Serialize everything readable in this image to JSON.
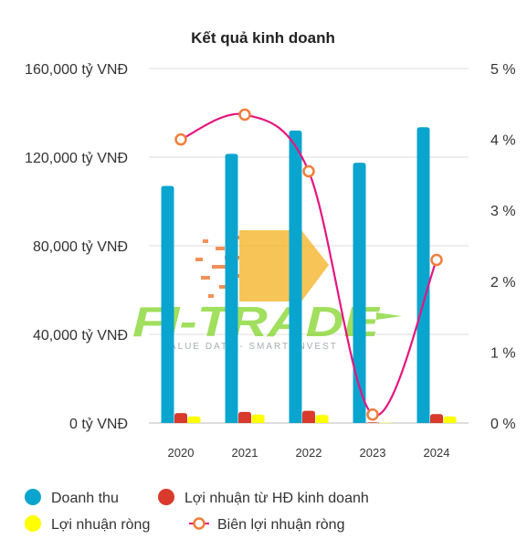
{
  "chart_data": {
    "type": "bar",
    "title": "Kết quả kinh doanh",
    "categories": [
      "2020",
      "2021",
      "2022",
      "2023",
      "2024"
    ],
    "series": [
      {
        "name": "Doanh thu",
        "kind": "bar",
        "axis": "left",
        "color": "#0aa5cf",
        "values": [
          107000,
          121500,
          132000,
          117500,
          133500
        ]
      },
      {
        "name": "Lợi nhuận từ HĐ kinh doanh",
        "kind": "bar",
        "axis": "left",
        "color": "#d93a2b",
        "values": [
          4500,
          5000,
          5500,
          300,
          4000
        ]
      },
      {
        "name": "Lợi nhuận ròng",
        "kind": "bar",
        "axis": "left",
        "color": "#ffff00",
        "values": [
          3000,
          3800,
          3600,
          200,
          3000
        ]
      },
      {
        "name": "Biên lợi nhuận ròng",
        "kind": "line",
        "axis": "right",
        "color": "#e6157f",
        "marker_color": "#f07d3a",
        "values": [
          4.0,
          4.35,
          3.55,
          0.12,
          2.3
        ]
      }
    ],
    "y_left": {
      "ylim": [
        0,
        160000
      ],
      "ticks": [
        0,
        40000,
        80000,
        120000,
        160000
      ],
      "tick_labels": [
        "0 tỷ VNĐ",
        "40,000 tỷ VNĐ",
        "80,000 tỷ VNĐ",
        "120,000 tỷ VNĐ",
        "160,000 tỷ VNĐ"
      ]
    },
    "y_right": {
      "ylim": [
        0,
        5
      ],
      "ticks": [
        0,
        1,
        2,
        3,
        4,
        5
      ],
      "tick_labels": [
        "0 %",
        "1 %",
        "2 %",
        "3 %",
        "4 %",
        "5 %"
      ]
    },
    "grid": true,
    "legend_position": "bottom"
  },
  "watermark": {
    "logo_text": "FI-TRADE",
    "tagline": "VALUE DATA - SMART INVEST",
    "logo_color": "#7ed321",
    "arrow_color": "#f5b223"
  }
}
